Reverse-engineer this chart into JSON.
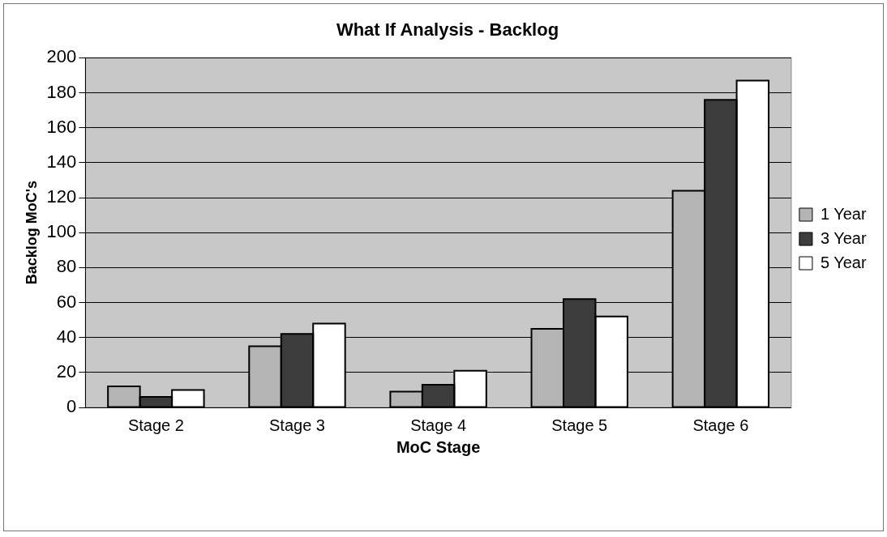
{
  "chart_data": {
    "type": "bar",
    "title": "What If Analysis - Backlog",
    "xlabel": "MoC Stage",
    "ylabel": "Backlog MoC's",
    "categories": [
      "Stage 2",
      "Stage 3",
      "Stage 4",
      "Stage 5",
      "Stage 6"
    ],
    "series": [
      {
        "name": "1 Year",
        "color": "#b4b4b4",
        "values": [
          12,
          35,
          9,
          45,
          124
        ]
      },
      {
        "name": "3 Year",
        "color": "#3c3c3c",
        "values": [
          6,
          42,
          13,
          62,
          176
        ]
      },
      {
        "name": "5 Year",
        "color": "#ffffff",
        "values": [
          10,
          48,
          21,
          52,
          187
        ]
      }
    ],
    "ylim": [
      0,
      200
    ],
    "yticks": [
      0,
      20,
      40,
      60,
      80,
      100,
      120,
      140,
      160,
      180,
      200
    ],
    "grid": "y",
    "legend": "right"
  }
}
